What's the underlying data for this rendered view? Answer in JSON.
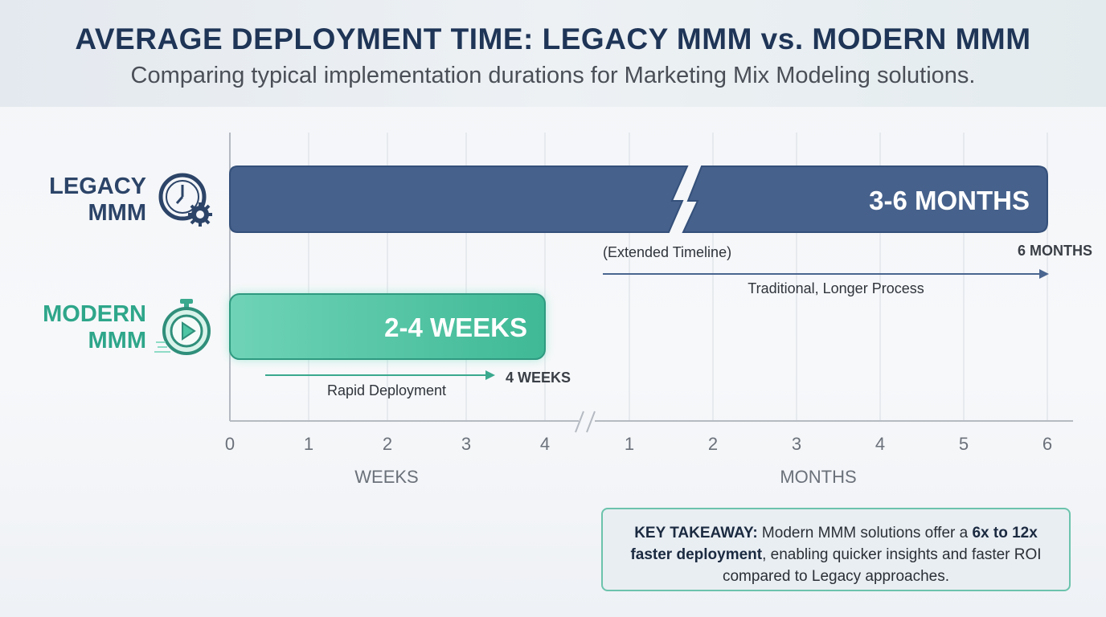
{
  "header": {
    "title": "AVERAGE DEPLOYMENT TIME: LEGACY MMM vs. MODERN MMM",
    "subtitle": "Comparing typical implementation durations for Marketing Mix Modeling solutions."
  },
  "rows": {
    "legacy": {
      "line1": "LEGACY",
      "line2": "MMM",
      "icon": "clock-gear-icon"
    },
    "modern": {
      "line1": "MODERN",
      "line2": "MMM",
      "icon": "stopwatch-play-icon"
    }
  },
  "chart_data": {
    "type": "bar",
    "orientation": "horizontal",
    "title": "AVERAGE DEPLOYMENT TIME: LEGACY MMM vs. MODERN MMM",
    "x_axis": {
      "segments": [
        {
          "label": "WEEKS",
          "ticks": [
            "0",
            "1",
            "2",
            "3",
            "4"
          ],
          "range": [
            0,
            4
          ]
        },
        {
          "label": "MONTHS",
          "ticks": [
            "1",
            "2",
            "3",
            "4",
            "5",
            "6"
          ],
          "range": [
            1,
            6
          ]
        }
      ],
      "axis_break": true
    },
    "series": [
      {
        "name": "Legacy MMM",
        "bar_label": "3-6 MONTHS",
        "range_text": "3-6 months",
        "end": {
          "unit": "months",
          "value": 6
        },
        "end_label": "6 MONTHS",
        "note": "(Extended Timeline)",
        "arrow_label": "Traditional, Longer Process",
        "color": "#46618b"
      },
      {
        "name": "Modern MMM",
        "bar_label": "2-4 WEEKS",
        "range_text": "2-4 weeks",
        "end": {
          "unit": "weeks",
          "value": 4
        },
        "end_label": "4 WEEKS",
        "arrow_label": "Rapid Deployment",
        "color": "#4ec5a4"
      }
    ],
    "grid": true
  },
  "takeaway": {
    "lead": "KEY TAKEAWAY:",
    "t1": " Modern MMM solutions offer a ",
    "bold": "6x to 12x faster deployment",
    "t2": ", enabling quicker insights and faster ROI compared to Legacy approaches."
  }
}
